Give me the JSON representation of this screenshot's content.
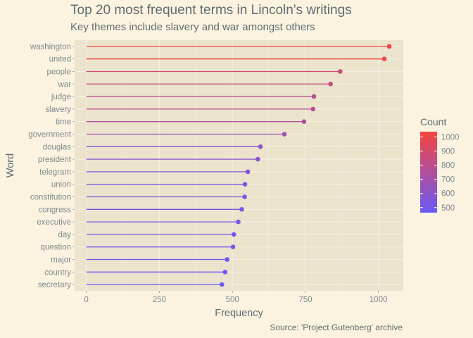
{
  "chart_data": {
    "type": "lollipop",
    "title": "Top 20 most frequent terms in Lincoln's writings",
    "subtitle": "Key themes include slavery and war amongst others",
    "caption": "Source: 'Project Gutenberg' archive",
    "xlabel": "Frequency",
    "ylabel": "Word",
    "xlim": [
      -40,
      1085
    ],
    "xticks": [
      0,
      250,
      500,
      750,
      1000
    ],
    "xtick_labels": [
      "0",
      "250",
      "500",
      "750",
      "1000"
    ],
    "grid": true,
    "categories": [
      "washington",
      "united",
      "people",
      "war",
      "judge",
      "slavery",
      "time",
      "government",
      "douglas",
      "president",
      "telegram",
      "union",
      "constitution",
      "congress",
      "executive",
      "day",
      "question",
      "major",
      "country",
      "secretary"
    ],
    "values": [
      1037,
      1020,
      869,
      836,
      779,
      776,
      745,
      678,
      596,
      587,
      553,
      543,
      542,
      532,
      520,
      505,
      502,
      482,
      475,
      464
    ],
    "legend": {
      "title": "Count",
      "placement": "right",
      "range": [
        464,
        1037
      ],
      "ticks": [
        500,
        600,
        700,
        800,
        900,
        1000
      ],
      "tick_labels": [
        "500",
        "600",
        "700",
        "800",
        "900",
        "1000"
      ],
      "color_low": "#6a5af7",
      "color_high": "#f5443f"
    },
    "colors": {
      "background": "#fbf2df",
      "panel": "#ebe3cc",
      "grid": "#f6efe1",
      "text": "#5f6c73",
      "tick_text": "#7f8a90"
    }
  }
}
